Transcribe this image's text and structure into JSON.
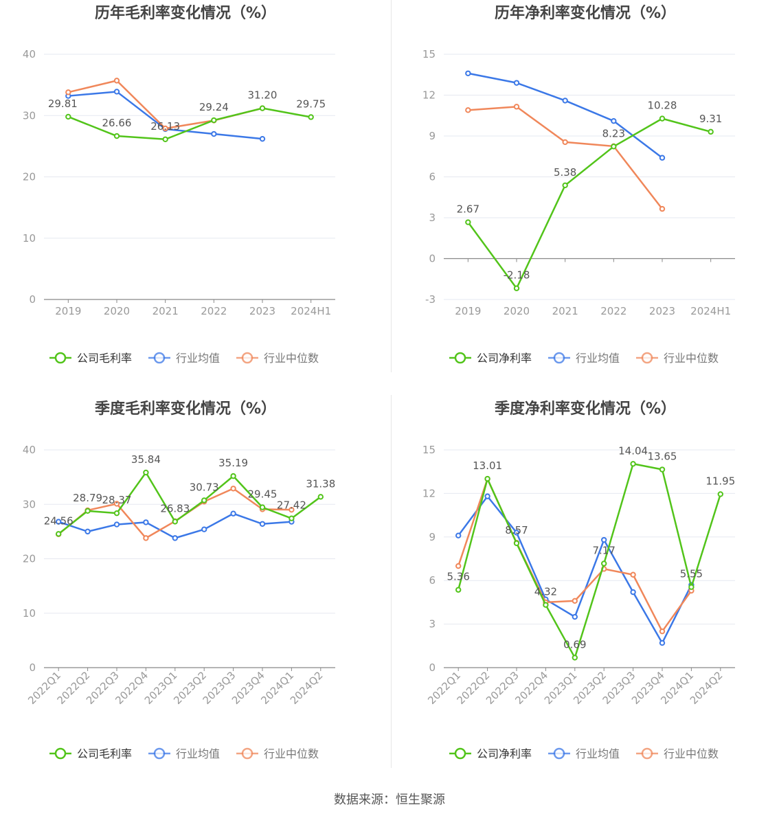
{
  "colors": {
    "company": "#52c41a",
    "industry_avg": "#3b78e7",
    "industry_median": "#f0875a",
    "grid": "#e6e8f0",
    "axis": "#888888",
    "tick_text": "#999999",
    "label_text": "#555555",
    "title_text": "#444444"
  },
  "source_text": "数据来源：恒生聚源",
  "chart_data": [
    {
      "type": "line",
      "title": "历年毛利率变化情况（%）",
      "categories": [
        "2019",
        "2020",
        "2021",
        "2022",
        "2023",
        "2024H1"
      ],
      "ylim": [
        0,
        40
      ],
      "yticks": [
        0,
        10,
        20,
        30,
        40
      ],
      "rotate_x": false,
      "legend": "bottom",
      "series": [
        {
          "name": "公司毛利率",
          "key": "company",
          "values": [
            29.81,
            26.66,
            26.13,
            29.24,
            31.2,
            29.75
          ],
          "labels": [
            "29.81",
            "26.66",
            "26.13",
            "29.24",
            "31.20",
            "29.75"
          ]
        },
        {
          "name": "行业均值",
          "key": "industry_avg",
          "values": [
            33.2,
            33.9,
            27.8,
            27.0,
            26.2,
            null
          ]
        },
        {
          "name": "行业中位数",
          "key": "industry_median",
          "values": [
            33.8,
            35.7,
            27.9,
            29.2,
            31.2,
            null
          ]
        }
      ]
    },
    {
      "type": "line",
      "title": "历年净利率变化情况（%）",
      "categories": [
        "2019",
        "2020",
        "2021",
        "2022",
        "2023",
        "2024H1"
      ],
      "ylim": [
        -3,
        15
      ],
      "yticks": [
        -3,
        0,
        3,
        6,
        9,
        12,
        15
      ],
      "rotate_x": false,
      "legend": "bottom",
      "series": [
        {
          "name": "公司净利率",
          "key": "company",
          "values": [
            2.67,
            -2.18,
            5.38,
            8.23,
            10.28,
            9.31
          ],
          "labels": [
            "2.67",
            "-2.18",
            "5.38",
            "8.23",
            "10.28",
            "9.31"
          ]
        },
        {
          "name": "行业均值",
          "key": "industry_avg",
          "values": [
            13.6,
            12.9,
            11.6,
            10.1,
            7.4,
            null
          ]
        },
        {
          "name": "行业中位数",
          "key": "industry_median",
          "values": [
            10.9,
            11.15,
            8.55,
            8.25,
            3.65,
            null
          ]
        }
      ]
    },
    {
      "type": "line",
      "title": "季度毛利率变化情况（%）",
      "categories": [
        "2022Q1",
        "2022Q2",
        "2022Q3",
        "2022Q4",
        "2023Q1",
        "2023Q2",
        "2023Q3",
        "2023Q4",
        "2024Q1",
        "2024Q2"
      ],
      "ylim": [
        0,
        40
      ],
      "yticks": [
        0,
        10,
        20,
        30,
        40
      ],
      "rotate_x": true,
      "legend": "bottom",
      "series": [
        {
          "name": "公司毛利率",
          "key": "company",
          "values": [
            24.56,
            28.79,
            28.37,
            35.84,
            26.83,
            30.73,
            35.19,
            29.45,
            27.42,
            31.38
          ],
          "labels": [
            "24.56",
            "28.79",
            "28.37",
            "35.84",
            "26.83",
            "30.73",
            "35.19",
            "29.45",
            "27.42",
            "31.38"
          ]
        },
        {
          "name": "行业均值",
          "key": "industry_avg",
          "values": [
            26.8,
            25.0,
            26.3,
            26.7,
            23.8,
            25.4,
            28.3,
            26.4,
            26.8,
            null
          ]
        },
        {
          "name": "行业中位数",
          "key": "industry_median",
          "values": [
            24.5,
            28.9,
            30.1,
            23.8,
            26.9,
            30.5,
            32.9,
            29.1,
            29.0,
            null
          ]
        }
      ]
    },
    {
      "type": "line",
      "title": "季度净利率变化情况（%）",
      "categories": [
        "2022Q1",
        "2022Q2",
        "2022Q3",
        "2022Q4",
        "2023Q1",
        "2023Q2",
        "2023Q3",
        "2023Q4",
        "2024Q1",
        "2024Q2"
      ],
      "ylim": [
        0,
        15
      ],
      "yticks": [
        0,
        3,
        6,
        9,
        12,
        15
      ],
      "rotate_x": true,
      "legend": "bottom",
      "series": [
        {
          "name": "公司净利率",
          "key": "company",
          "values": [
            5.36,
            13.01,
            8.57,
            4.32,
            0.69,
            7.17,
            14.04,
            13.65,
            5.55,
            11.95
          ],
          "labels": [
            "5.36",
            "13.01",
            "8.57",
            "4.32",
            "0.69",
            "7.17",
            "14.04",
            "13.65",
            "5.55",
            "11.95"
          ]
        },
        {
          "name": "行业均值",
          "key": "industry_avg",
          "values": [
            9.1,
            11.8,
            9.3,
            4.7,
            3.5,
            8.8,
            5.2,
            1.7,
            5.7,
            null
          ]
        },
        {
          "name": "行业中位数",
          "key": "industry_median",
          "values": [
            7.0,
            13.0,
            8.6,
            4.5,
            4.6,
            6.8,
            6.4,
            2.5,
            5.3,
            null
          ]
        }
      ]
    }
  ]
}
